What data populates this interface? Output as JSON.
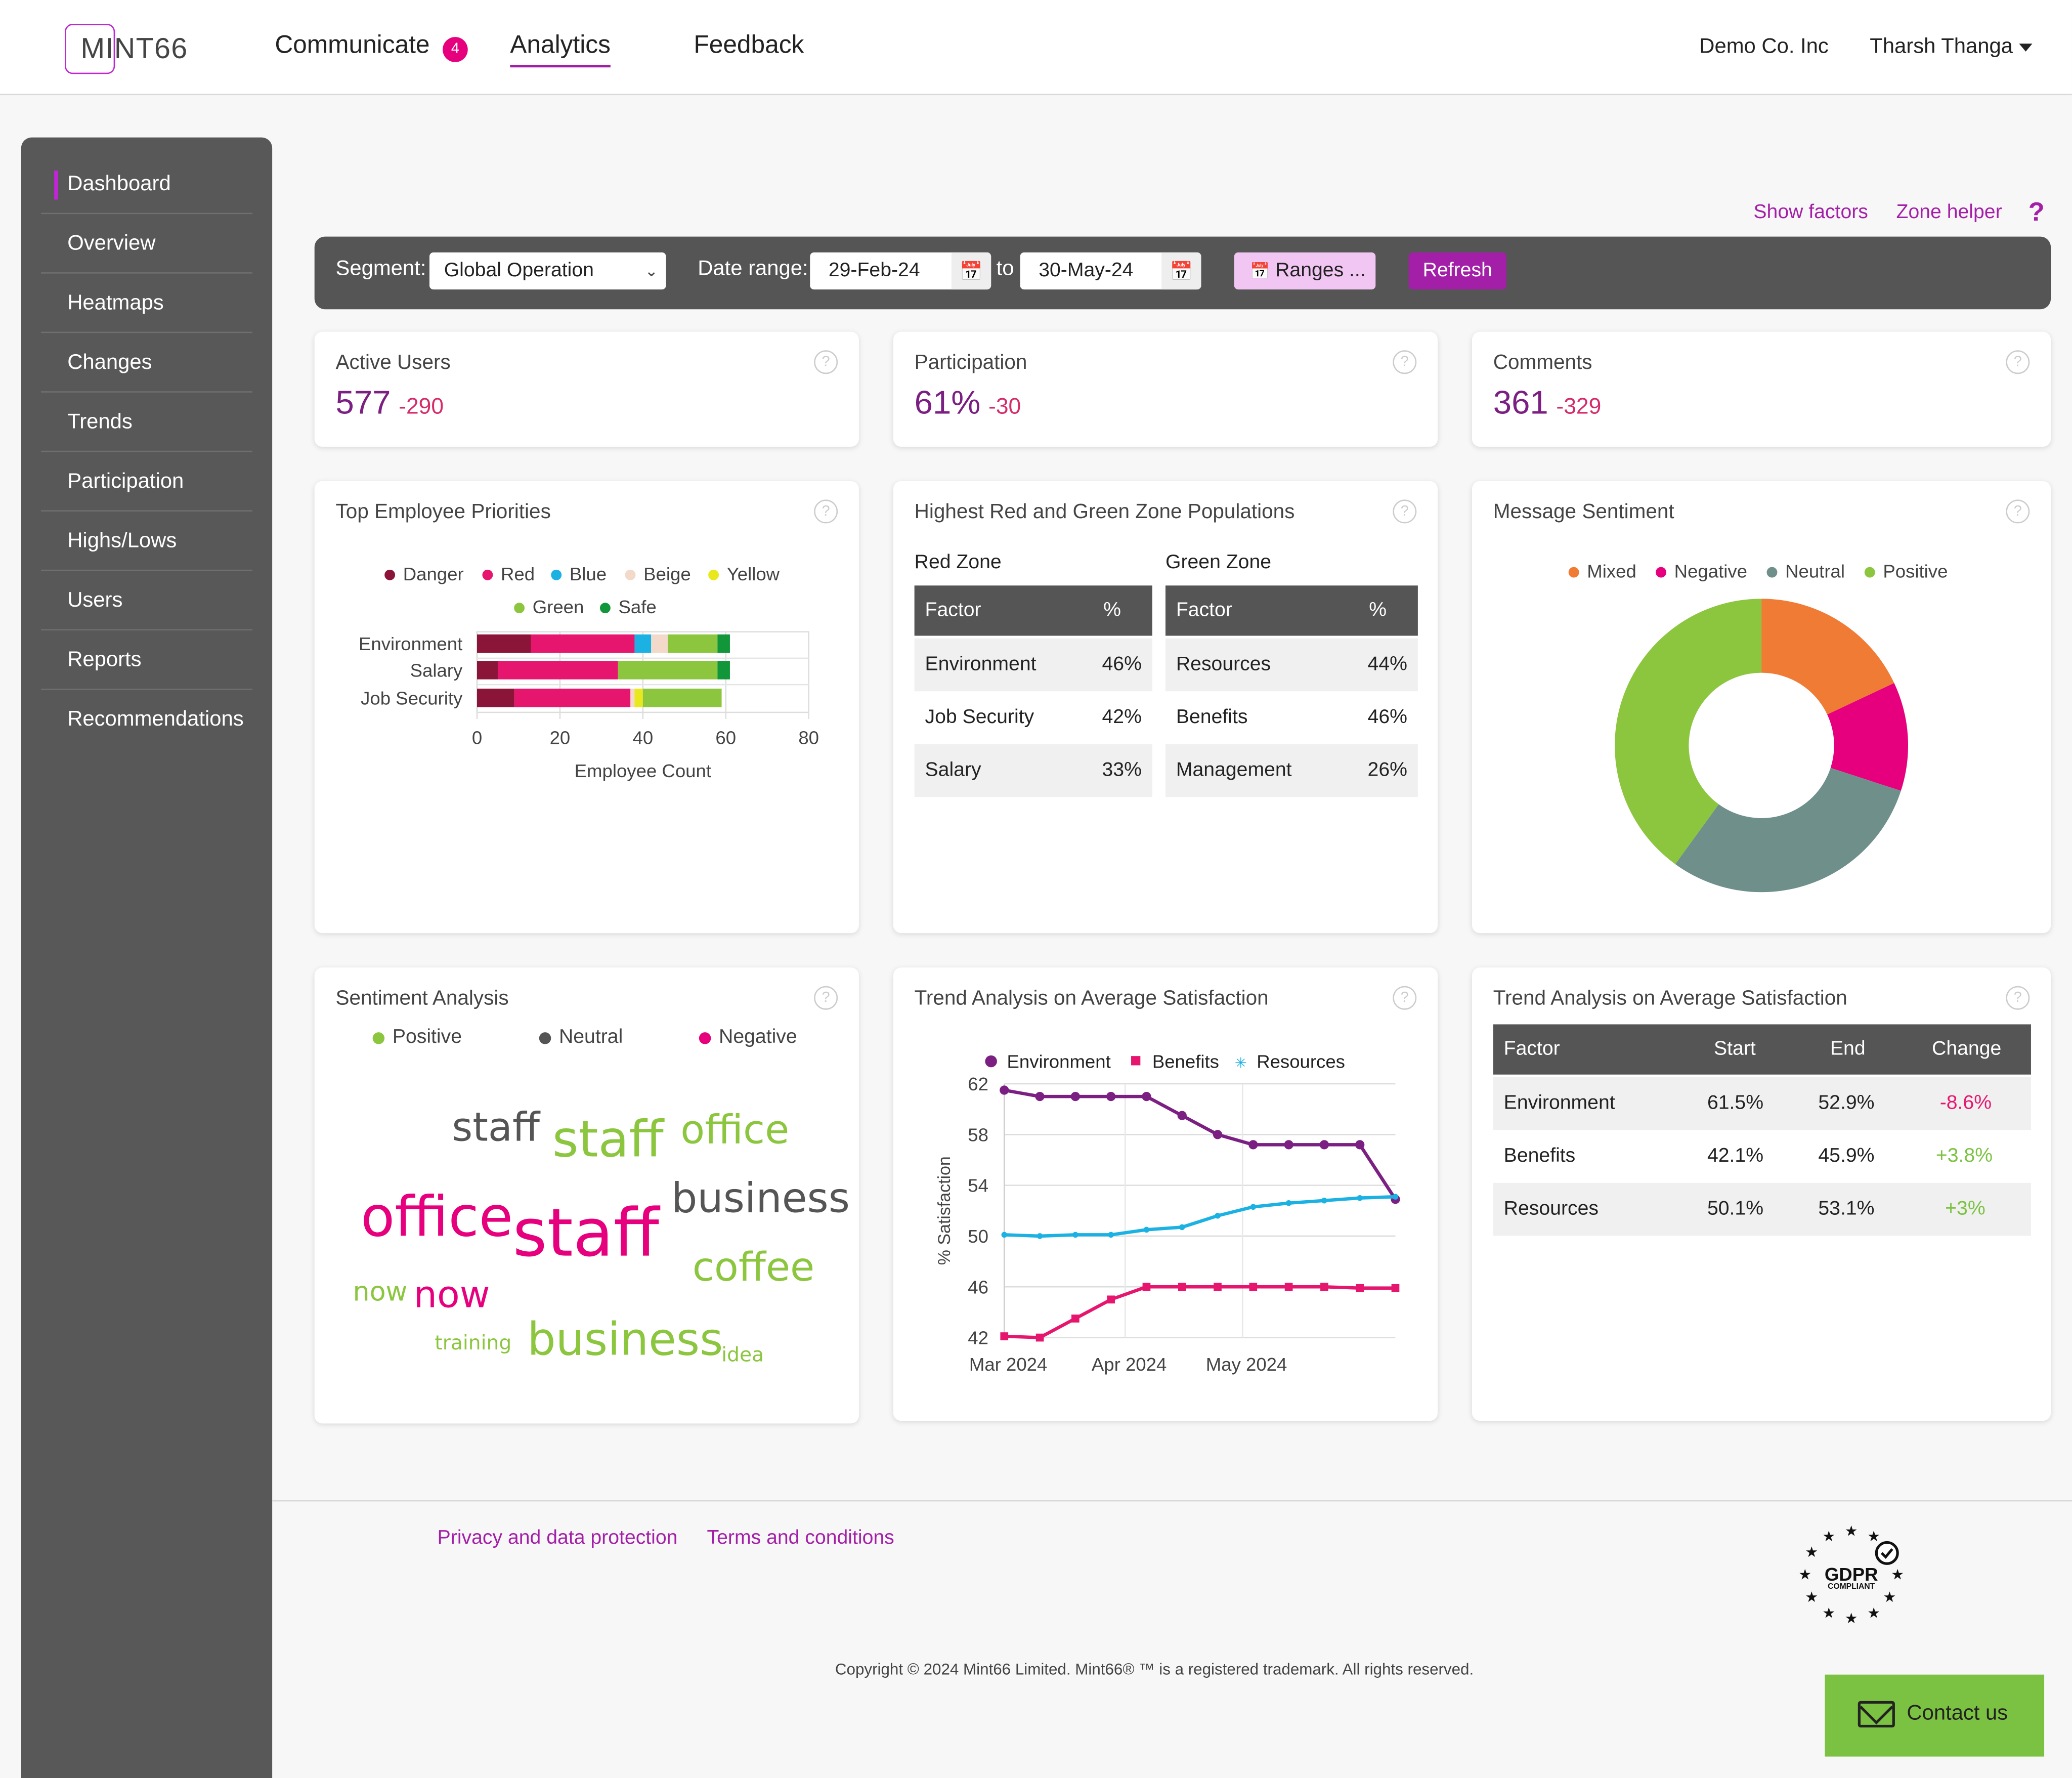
{
  "header": {
    "logo_text": "MINT66",
    "nav": [
      {
        "label": "Communicate",
        "badge": "4"
      },
      {
        "label": "Analytics"
      },
      {
        "label": "Feedback"
      }
    ],
    "company": "Demo Co. Inc",
    "user": "Tharsh Thanga"
  },
  "sidebar": {
    "items": [
      {
        "label": "Dashboard"
      },
      {
        "label": "Overview"
      },
      {
        "label": "Heatmaps"
      },
      {
        "label": "Changes"
      },
      {
        "label": "Trends"
      },
      {
        "label": "Participation"
      },
      {
        "label": "Highs/Lows"
      },
      {
        "label": "Users"
      },
      {
        "label": "Reports"
      },
      {
        "label": "Recommendations"
      }
    ]
  },
  "links": {
    "show_factors": "Show factors",
    "zone_helper": "Zone helper",
    "help": "?"
  },
  "filters": {
    "segment_label": "Segment:",
    "segment_value": "Global Operation",
    "date_label": "Date range:",
    "date_from": "29-Feb-24",
    "to_label": "to",
    "date_to": "30-May-24",
    "ranges_label": "Ranges ...",
    "refresh_label": "Refresh"
  },
  "metrics": [
    {
      "title": "Active Users",
      "value": "577",
      "delta": "-290"
    },
    {
      "title": "Participation",
      "value": "61%",
      "delta": "-30"
    },
    {
      "title": "Comments",
      "value": "361",
      "delta": "-329"
    }
  ],
  "priorities": {
    "title": "Top Employee Priorities",
    "legend": [
      {
        "name": "Danger",
        "color": "#8b1538"
      },
      {
        "name": "Red",
        "color": "#e6166f"
      },
      {
        "name": "Blue",
        "color": "#1bb1e3"
      },
      {
        "name": "Beige",
        "color": "#f2d9c9"
      },
      {
        "name": "Yellow",
        "color": "#e8e81c"
      },
      {
        "name": "Green",
        "color": "#8cc63f"
      },
      {
        "name": "Safe",
        "color": "#12963a"
      }
    ]
  },
  "zones": {
    "title": "Highest Red and Green Zone Populations",
    "red_label": "Red Zone",
    "green_label": "Green Zone",
    "col_factor": "Factor",
    "col_pct": "%",
    "red": [
      {
        "factor": "Environment",
        "pct": "46%"
      },
      {
        "factor": "Job Security",
        "pct": "42%"
      },
      {
        "factor": "Salary",
        "pct": "33%"
      }
    ],
    "green": [
      {
        "factor": "Resources",
        "pct": "44%"
      },
      {
        "factor": "Benefits",
        "pct": "46%"
      },
      {
        "factor": "Management",
        "pct": "26%"
      }
    ]
  },
  "sentiment": {
    "title": "Message Sentiment",
    "legend": [
      {
        "name": "Mixed",
        "color": "#f07b35"
      },
      {
        "name": "Negative",
        "color": "#e6007e"
      },
      {
        "name": "Neutral",
        "color": "#6f8f8b"
      },
      {
        "name": "Positive",
        "color": "#8cc63f"
      }
    ]
  },
  "word_cloud": {
    "title": "Sentiment Analysis",
    "legend": [
      {
        "name": "Positive",
        "color": "#8cc63f"
      },
      {
        "name": "Neutral",
        "color": "#555555"
      },
      {
        "name": "Negative",
        "color": "#e6007e"
      }
    ],
    "words": [
      {
        "text": "staff",
        "color": "#555555"
      },
      {
        "text": "staff",
        "color": "#8cc63f"
      },
      {
        "text": "office",
        "color": "#8cc63f"
      },
      {
        "text": "office",
        "color": "#e6007e"
      },
      {
        "text": "staff",
        "color": "#e6007e"
      },
      {
        "text": "business",
        "color": "#555555"
      },
      {
        "text": "coffee",
        "color": "#8cc63f"
      },
      {
        "text": "now",
        "color": "#8cc63f"
      },
      {
        "text": "now",
        "color": "#e6007e"
      },
      {
        "text": "training",
        "color": "#8cc63f"
      },
      {
        "text": "business",
        "color": "#8cc63f"
      },
      {
        "text": "idea",
        "color": "#8cc63f"
      }
    ]
  },
  "trend_chart_title": "Trend Analysis on Average Satisfaction",
  "trend_table": {
    "title": "Trend Analysis on Average Satisfaction",
    "headers": [
      "Factor",
      "Start",
      "End",
      "Change"
    ],
    "rows": [
      {
        "factor": "Environment",
        "start": "61.5%",
        "end": "52.9%",
        "change": "-8.6%",
        "change_color": "#e6166f"
      },
      {
        "factor": "Benefits",
        "start": "42.1%",
        "end": "45.9%",
        "change": "+3.8%",
        "change_color": "#7cc242"
      },
      {
        "factor": "Resources",
        "start": "50.1%",
        "end": "53.1%",
        "change": "+3%",
        "change_color": "#7cc242"
      }
    ]
  },
  "footer": {
    "privacy": "Privacy and data protection",
    "terms": "Terms and conditions",
    "copyright": "Copyright © 2024 Mint66 Limited. Mint66® ™ is a registered trademark. All rights reserved.",
    "gdpr": "GDPR",
    "gdpr_sub": "COMPLIANT",
    "contact": "Contact us"
  },
  "chart_data": [
    {
      "type": "bar",
      "stacked": true,
      "orientation": "horizontal",
      "categories": [
        "Environment",
        "Salary",
        "Job Security"
      ],
      "series": [
        {
          "name": "Danger",
          "values": [
            13,
            5,
            9
          ]
        },
        {
          "name": "Red",
          "values": [
            25,
            29,
            28
          ]
        },
        {
          "name": "Blue",
          "values": [
            4,
            0,
            0
          ]
        },
        {
          "name": "Beige",
          "values": [
            4,
            0,
            1
          ]
        },
        {
          "name": "Yellow",
          "values": [
            0,
            0,
            2
          ]
        },
        {
          "name": "Green",
          "values": [
            12,
            24,
            19
          ]
        },
        {
          "name": "Safe",
          "values": [
            3,
            3,
            0
          ]
        }
      ],
      "xlim": [
        0,
        80
      ],
      "xticks": [
        "0",
        "20",
        "40",
        "60",
        "80"
      ],
      "xlabel": "Employee Count"
    },
    {
      "type": "pie",
      "donut": true,
      "labels": [
        "Mixed",
        "Negative",
        "Neutral",
        "Positive"
      ],
      "values": [
        18,
        12,
        30,
        40
      ]
    },
    {
      "type": "line",
      "x_labels": [
        "Mar 2024",
        "Apr 2024",
        "May 2024"
      ],
      "ylabel": "% Satisfaction",
      "ylim": [
        42,
        62
      ],
      "yticks": [
        "42",
        "46",
        "50",
        "54",
        "58",
        "62"
      ],
      "series": [
        {
          "name": "Environment",
          "color": "#7b1f82",
          "marker": "circle",
          "values": [
            61.5,
            61.0,
            61.0,
            61.0,
            61.0,
            59.5,
            58.0,
            57.2,
            57.2,
            57.2,
            57.2,
            52.9
          ]
        },
        {
          "name": "Benefits",
          "color": "#e6166f",
          "marker": "square",
          "values": [
            42.1,
            42.0,
            43.5,
            45.0,
            46.0,
            46.0,
            46.0,
            46.0,
            46.0,
            46.0,
            45.9,
            45.9
          ]
        },
        {
          "name": "Resources",
          "color": "#1bb1e3",
          "marker": "star",
          "values": [
            50.1,
            50.0,
            50.1,
            50.1,
            50.5,
            50.7,
            51.6,
            52.3,
            52.6,
            52.8,
            53.0,
            53.1
          ]
        }
      ]
    }
  ]
}
